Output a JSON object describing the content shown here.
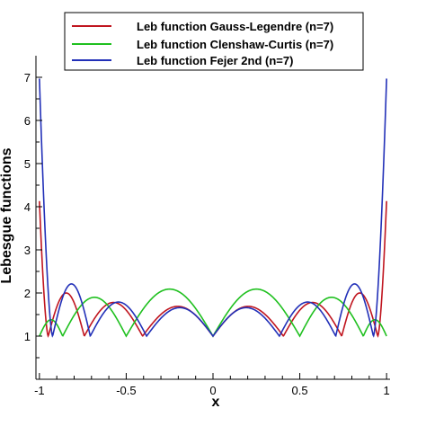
{
  "chart_data": {
    "type": "line",
    "xlabel": "x",
    "ylabel": "Lebesgue functions",
    "xlim": [
      -1.02,
      1.02
    ],
    "ylim": [
      0,
      7.5
    ],
    "xticks": [
      -1,
      -0.5,
      0,
      0.5,
      1
    ],
    "xtick_labels": [
      "-1",
      "-0.5",
      "0",
      "0.5",
      "1"
    ],
    "yticks": [
      1,
      2,
      3,
      4,
      5,
      6,
      7
    ],
    "ytick_labels": [
      "1",
      "2",
      "3",
      "4",
      "5",
      "6",
      "7"
    ],
    "grid": false,
    "legend_position": "top-right",
    "colors": {
      "axes": "#000000",
      "background": "#ffffff"
    },
    "series": [
      {
        "name": "Leb function Gauss-Legendre (n=7)",
        "color": "#c0151f",
        "nodes": [
          -0.9491,
          -0.7415,
          -0.4058,
          0.0,
          0.4058,
          0.7415,
          0.9491
        ],
        "endpoint_value": 4.13,
        "arch_peaks": [
          2.0,
          1.78,
          1.69,
          1.69,
          1.78,
          2.0
        ]
      },
      {
        "name": "Leb function Clenshaw-Curtis (n=7)",
        "color": "#1fc01f",
        "nodes": [
          -1.0,
          -0.866,
          -0.5,
          0.0,
          0.5,
          0.866,
          1.0
        ],
        "endpoint_value": 1.0,
        "arch_peaks": [
          1.38,
          1.9,
          2.09,
          2.09,
          1.9,
          1.38
        ]
      },
      {
        "name": "Leb function Fejer 2nd  (n=7)",
        "color": "#2230b8",
        "nodes": [
          -0.9239,
          -0.7071,
          -0.3827,
          0.0,
          0.3827,
          0.7071,
          0.9239
        ],
        "endpoint_value": 6.97,
        "arch_peaks": [
          2.21,
          1.79,
          1.66,
          1.66,
          1.79,
          2.21
        ]
      }
    ]
  }
}
